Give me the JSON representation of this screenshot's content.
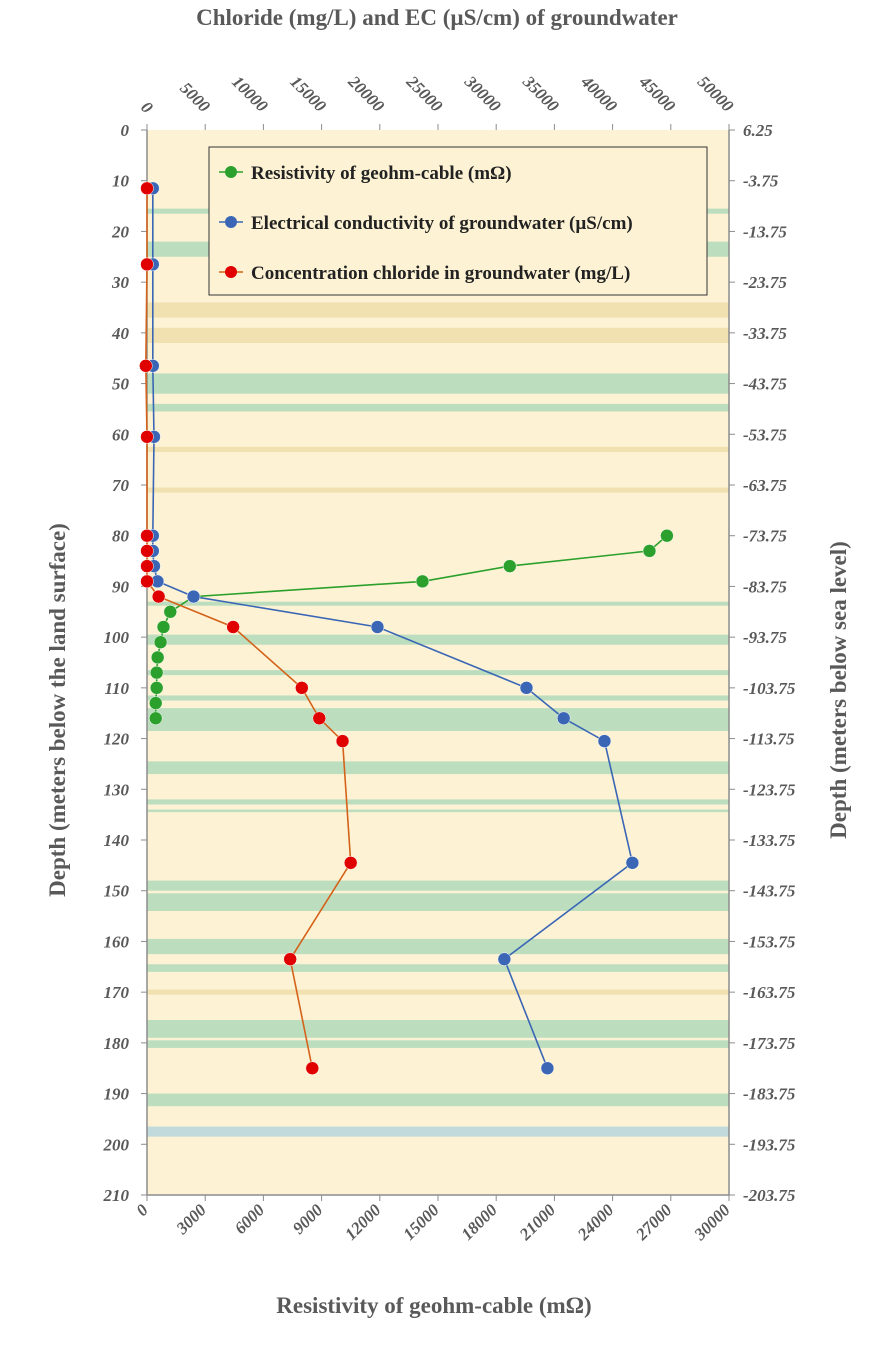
{
  "chart_data": {
    "type": "line",
    "title": "Chloride (mg/L) and EC (µS/cm) of groundwater",
    "top_axis": {
      "label": "Chloride (mg/L) and EC (µS/cm) of groundwater",
      "range": [
        0,
        50000
      ],
      "ticks": [
        "0",
        "5000",
        "10000",
        "15000",
        "20000",
        "25000",
        "30000",
        "35000",
        "40000",
        "45000",
        "50000"
      ]
    },
    "bottom_axis": {
      "label": "Resistivity of geohm-cable (mΩ)",
      "range": [
        0,
        30000
      ],
      "ticks": [
        "0",
        "3000",
        "6000",
        "9000",
        "12000",
        "15000",
        "18000",
        "21000",
        "24000",
        "27000",
        "30000"
      ]
    },
    "left_axis": {
      "label": "Depth (meters below the land surface)",
      "range": [
        0,
        210
      ],
      "ticks": [
        "0",
        "10",
        "20",
        "30",
        "40",
        "50",
        "60",
        "70",
        "80",
        "90",
        "100",
        "110",
        "120",
        "130",
        "140",
        "150",
        "160",
        "170",
        "180",
        "190",
        "200",
        "210"
      ]
    },
    "right_axis": {
      "label": "Depth (meters below sea level)",
      "ticks": [
        "6.25",
        "-3.75",
        "-13.75",
        "-23.75",
        "-33.75",
        "-43.75",
        "-53.75",
        "-63.75",
        "-73.75",
        "-83.75",
        "-93.75",
        "-103.75",
        "-113.75",
        "-123.75",
        "-133.75",
        "-143.75",
        "-153.75",
        "-163.75",
        "-173.75",
        "-183.75",
        "-193.75",
        "-203.75"
      ]
    },
    "legend_position": "top-right",
    "grid": false,
    "series": [
      {
        "name": "Resistivity of geohm-cable (mΩ)",
        "color": "#2ca02c",
        "axis": "bottom",
        "points": [
          {
            "x": 26800,
            "depth": 80
          },
          {
            "x": 25900,
            "depth": 83
          },
          {
            "x": 18700,
            "depth": 86
          },
          {
            "x": 14200,
            "depth": 89
          },
          {
            "x": 2400,
            "depth": 92
          },
          {
            "x": 1200,
            "depth": 95
          },
          {
            "x": 850,
            "depth": 98
          },
          {
            "x": 700,
            "depth": 101
          },
          {
            "x": 550,
            "depth": 104
          },
          {
            "x": 500,
            "depth": 107
          },
          {
            "x": 500,
            "depth": 110
          },
          {
            "x": 450,
            "depth": 113
          },
          {
            "x": 450,
            "depth": 116
          }
        ]
      },
      {
        "name": "Electrical conductivity of groundwater (µS/cm)",
        "color": "#3a66b5",
        "axis": "top",
        "points": [
          {
            "x": 500,
            "depth": 11.5
          },
          {
            "x": 500,
            "depth": 26.5
          },
          {
            "x": 500,
            "depth": 46.5
          },
          {
            "x": 600,
            "depth": 60.5
          },
          {
            "x": 500,
            "depth": 80
          },
          {
            "x": 500,
            "depth": 83
          },
          {
            "x": 600,
            "depth": 86
          },
          {
            "x": 900,
            "depth": 89
          },
          {
            "x": 4000,
            "depth": 92
          },
          {
            "x": 19800,
            "depth": 98
          },
          {
            "x": 32600,
            "depth": 110
          },
          {
            "x": 35800,
            "depth": 116
          },
          {
            "x": 39300,
            "depth": 120.5
          },
          {
            "x": 41700,
            "depth": 144.5
          },
          {
            "x": 30700,
            "depth": 163.5
          },
          {
            "x": 34400,
            "depth": 185
          }
        ]
      },
      {
        "name": "Concentration chloride in groundwater (mg/L)",
        "color": "#d4621a",
        "axis": "top",
        "points": [
          {
            "x": 0,
            "depth": 11.5
          },
          {
            "x": 0,
            "depth": 26.5
          },
          {
            "x": -100,
            "depth": 46.5
          },
          {
            "x": 0,
            "depth": 60.5
          },
          {
            "x": 0,
            "depth": 80
          },
          {
            "x": 0,
            "depth": 83
          },
          {
            "x": 0,
            "depth": 86
          },
          {
            "x": 0,
            "depth": 89
          },
          {
            "x": 1000,
            "depth": 92
          },
          {
            "x": 7400,
            "depth": 98
          },
          {
            "x": 13300,
            "depth": 110
          },
          {
            "x": 14800,
            "depth": 116
          },
          {
            "x": 16800,
            "depth": 120.5
          },
          {
            "x": 17500,
            "depth": 144.5
          },
          {
            "x": 12300,
            "depth": 163.5
          },
          {
            "x": 14200,
            "depth": 185
          }
        ]
      }
    ]
  },
  "background": {
    "base_color": "#fdf3d4",
    "green": "#b5dcbd",
    "blue": "#bcd7dd",
    "tan": "#f0dfad"
  }
}
